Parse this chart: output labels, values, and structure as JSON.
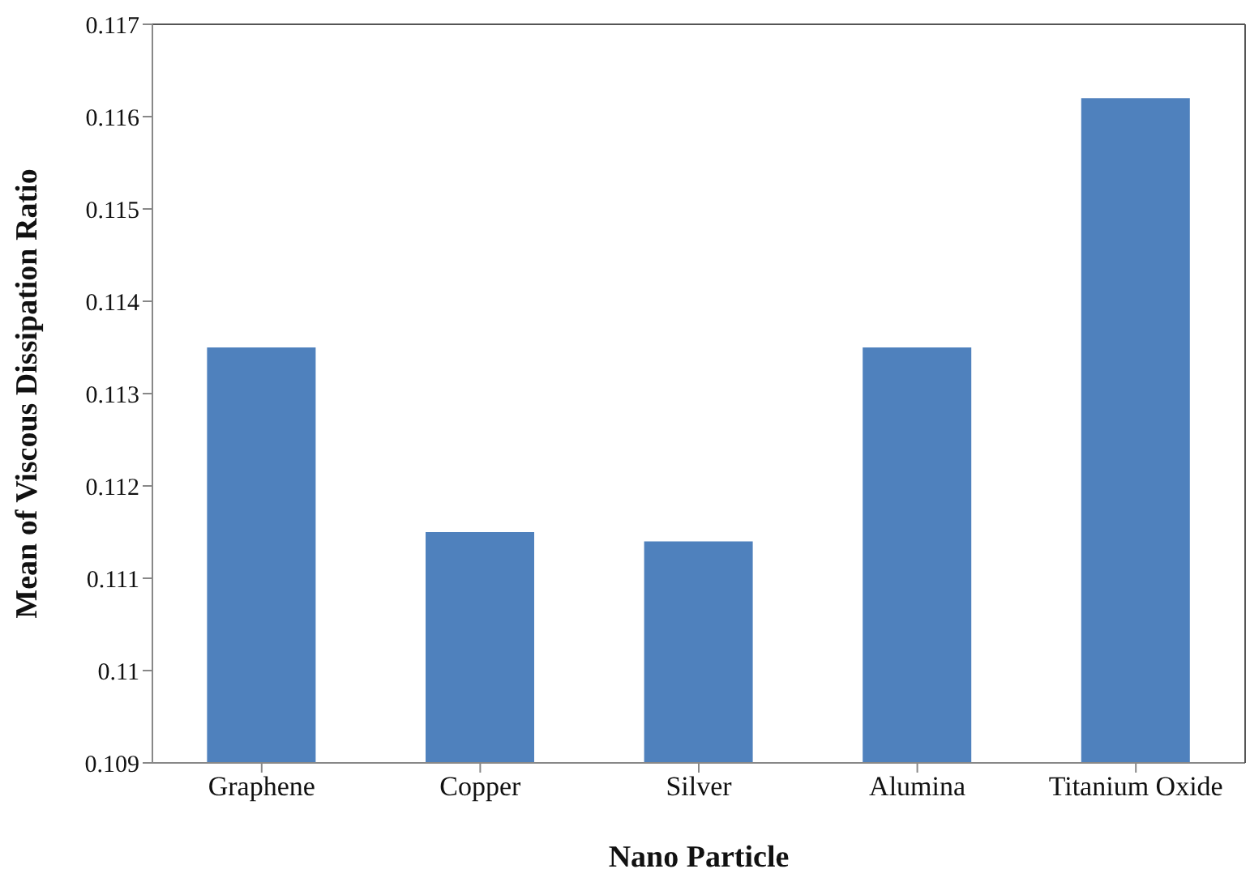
{
  "chart_data": {
    "type": "bar",
    "xlabel": "Nano Particle",
    "ylabel": "Mean of Viscous Dissipation Ratio",
    "categories": [
      "Graphene",
      "Copper",
      "Silver",
      "Alumina",
      "Titanium Oxide"
    ],
    "values": [
      0.1135,
      0.1115,
      0.1114,
      0.1135,
      0.1162
    ],
    "color": "#4f81bd",
    "ylim": [
      0.109,
      0.117
    ],
    "yticks": [
      0.109,
      0.11,
      0.111,
      0.112,
      0.113,
      0.114,
      0.115,
      0.116,
      0.117
    ],
    "grid": false,
    "legend": false
  }
}
